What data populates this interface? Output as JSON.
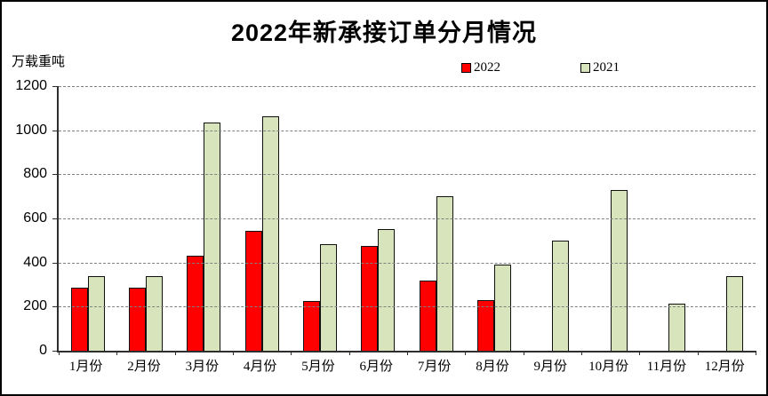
{
  "chart_data": {
    "type": "bar",
    "title": "2022年新承接订单分月情况",
    "ylabel_unit": "万载重吨",
    "categories": [
      "1月份",
      "2月份",
      "3月份",
      "4月份",
      "5月份",
      "6月份",
      "7月份",
      "8月份",
      "9月份",
      "10月份",
      "11月份",
      "12月份"
    ],
    "series": [
      {
        "name": "2022",
        "color": "#FF0000",
        "values": [
          285,
          285,
          430,
          545,
          225,
          475,
          320,
          230,
          null,
          null,
          null,
          null
        ]
      },
      {
        "name": "2021",
        "color": "#D8E4BC",
        "values": [
          340,
          340,
          1035,
          1065,
          485,
          550,
          700,
          390,
          500,
          730,
          215,
          340
        ]
      }
    ],
    "ylim": [
      0,
      1200
    ],
    "ytick_step": 200,
    "yticks": [
      0,
      200,
      400,
      600,
      800,
      1000,
      1200
    ],
    "grid": "horizontal-dashed",
    "legend_position": "top-center",
    "colors": {
      "axis": "#2e2e2e",
      "gridline": "#808080",
      "background": "#ffffff",
      "border": "#000000"
    }
  }
}
